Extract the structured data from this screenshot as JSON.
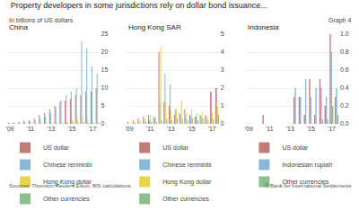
{
  "title": "Property developers in some jurisdictions rely on dollar bond issuance...",
  "subtitle": "In billions of US dollars",
  "annotations": [
    "Graph 4",
    "Sources: Thomson Reuters Eikon; BIS calculations.",
    "© Bank for International Settlements"
  ],
  "chart_data": [
    {
      "type": "bar",
      "title": "China",
      "categories": [
        "'09",
        null,
        null,
        null,
        "'11",
        null,
        null,
        null,
        "'13",
        null,
        null,
        null,
        "'15",
        null,
        null,
        null,
        "'17",
        null
      ],
      "series": [
        {
          "name": "US dollar",
          "color": "#c17b78",
          "values": [
            0.3,
            0.4,
            0.5,
            0.8,
            1.0,
            1.5,
            2.5,
            3.0,
            4.0,
            5.0,
            6.0,
            6.5,
            7.0,
            8.0,
            8.0,
            9.0,
            9.0,
            10.0
          ]
        },
        {
          "name": "Chinese renminbi",
          "color": "#89b8d8",
          "values": [
            0.2,
            0.3,
            0.4,
            0.5,
            0.7,
            1.0,
            1.5,
            2.0,
            3.0,
            4.5,
            6.5,
            8.0,
            9.0,
            10.0,
            23.0,
            21.0,
            16.0,
            14.0
          ]
        },
        {
          "name": "Hong Kong dollar",
          "color": "#e8d44d",
          "values": [
            0.0,
            0.0,
            0.0,
            0.0,
            0.1,
            0.1,
            0.2,
            0.2,
            0.3,
            0.3,
            0.4,
            0.5,
            1.0,
            1.5,
            2.0,
            1.5,
            0.5,
            0.5
          ]
        },
        {
          "name": "Other currencies",
          "color": "#8bbf8b",
          "values": [
            0.0,
            0.0,
            0.0,
            0.0,
            0.0,
            0.1,
            0.1,
            0.1,
            0.1,
            0.2,
            0.2,
            0.3,
            0.3,
            0.4,
            0.5,
            0.3,
            0.2,
            0.2
          ]
        }
      ],
      "ylim": [
        0,
        25
      ],
      "yticks": [
        0,
        5,
        10,
        15,
        20,
        25
      ],
      "grid": true,
      "legend": "bottom"
    },
    {
      "type": "bar",
      "title": "Hong Kong SAR",
      "categories": [
        "'09",
        null,
        null,
        null,
        "'11",
        null,
        null,
        null,
        "'13",
        null,
        null,
        null,
        "'15",
        null,
        null,
        null,
        "'17",
        null
      ],
      "series": [
        {
          "name": "US dollar",
          "color": "#c17b78",
          "values": [
            0.1,
            0.2,
            0.3,
            0.4,
            0.5,
            0.4,
            4.0,
            1.2,
            1.0,
            0.5,
            0.6,
            0.8,
            0.5,
            0.4,
            0.5,
            0.5,
            1.8,
            2.0
          ]
        },
        {
          "name": "Chinese renminbi",
          "color": "#89b8d8",
          "values": [
            0.0,
            0.0,
            0.1,
            0.1,
            0.2,
            0.3,
            1.2,
            2.8,
            2.2,
            0.8,
            0.5,
            0.4,
            0.4,
            0.4,
            0.4,
            0.4,
            1.8,
            2.0
          ]
        },
        {
          "name": "Hong Kong dollar",
          "color": "#e8d44d",
          "values": [
            0.0,
            0.1,
            0.2,
            0.3,
            0.5,
            0.4,
            4.3,
            1.2,
            0.7,
            0.8,
            1.3,
            0.6,
            0.8,
            0.6,
            0.7,
            0.4,
            0.7,
            1.0
          ]
        },
        {
          "name": "Other currencies",
          "color": "#8bbf8b",
          "values": [
            0.0,
            0.0,
            0.0,
            0.1,
            0.1,
            0.1,
            0.2,
            0.3,
            0.2,
            0.3,
            0.3,
            0.2,
            0.3,
            0.2,
            0.3,
            0.2,
            0.3,
            0.5
          ]
        }
      ],
      "ylim": [
        0,
        5
      ],
      "yticks": [
        0,
        1,
        2,
        3,
        4,
        5
      ],
      "grid": true,
      "legend": "bottom"
    },
    {
      "type": "bar",
      "title": "Indonesia",
      "categories": [
        "'09",
        null,
        null,
        null,
        "'11",
        null,
        null,
        null,
        "'13",
        null,
        null,
        null,
        "'15",
        null,
        null,
        null,
        "'17",
        null
      ],
      "series": [
        {
          "name": "US dollar",
          "color": "#c17b78",
          "values": [
            0.0,
            0.0,
            0.0,
            0.1,
            0.0,
            0.0,
            0.0,
            0.0,
            0.0,
            0.3,
            0.3,
            0.1,
            0.5,
            0.1,
            0.5,
            0.2,
            1.0,
            0.3
          ]
        },
        {
          "name": "Indonesian rupiah",
          "color": "#89b8d8",
          "values": [
            0.0,
            0.0,
            0.0,
            0.0,
            0.0,
            0.0,
            0.0,
            0.0,
            0.0,
            0.4,
            0.3,
            0.5,
            0.3,
            0.4,
            0.4,
            0.3,
            0.8,
            0.4
          ]
        },
        {
          "name": "Other currencies",
          "color": "#8bbf8b",
          "values": [
            0.0,
            0.0,
            0.0,
            0.0,
            0.0,
            0.0,
            0.0,
            0.0,
            0.0,
            0.0,
            0.0,
            0.0,
            0.0,
            0.0,
            0.05,
            0.05,
            0.2,
            0.1
          ]
        }
      ],
      "ylim": [
        0,
        1.0
      ],
      "yticks": [
        {
          "value": 0,
          "label": "0.0"
        },
        0.2,
        0.4,
        0.6,
        0.8,
        {
          "value": 1,
          "label": "1.0"
        }
      ],
      "grid": true,
      "legend": "bottom"
    }
  ]
}
